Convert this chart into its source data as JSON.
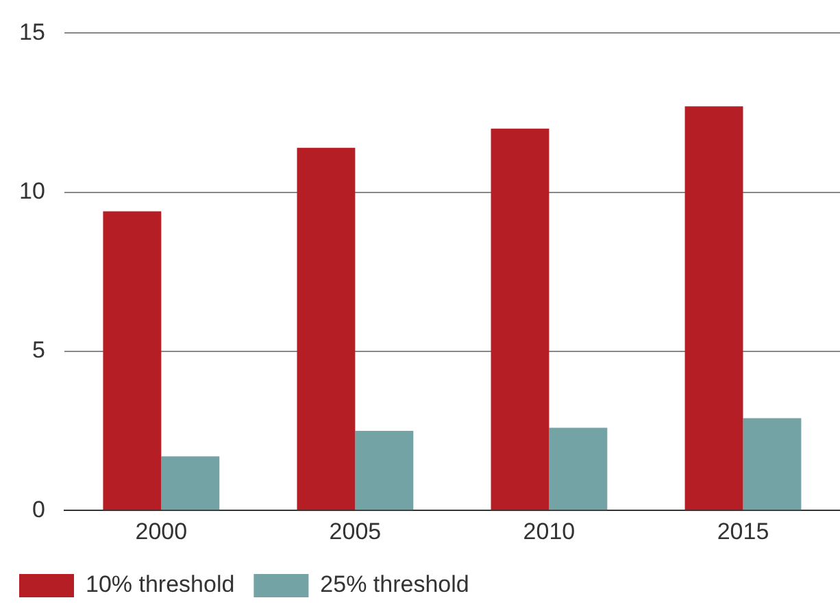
{
  "chart_data": {
    "type": "bar",
    "categories": [
      "2000",
      "2005",
      "2010",
      "2015"
    ],
    "series": [
      {
        "name": "10% threshold",
        "color": "#b41e24",
        "values": [
          9.4,
          11.4,
          12.0,
          12.7
        ]
      },
      {
        "name": "25% threshold",
        "color": "#74a3a6",
        "values": [
          1.7,
          2.5,
          2.6,
          2.9
        ]
      }
    ],
    "ylim": [
      0,
      15
    ],
    "yticks": [
      0,
      5,
      10,
      15
    ],
    "grid": "y",
    "legend": "bottom left"
  }
}
